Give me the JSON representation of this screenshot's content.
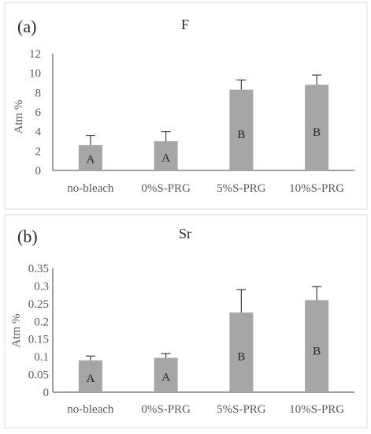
{
  "chart_data": [
    {
      "type": "bar",
      "panel_label": "(a)",
      "title": "F",
      "ylabel": "Atm %",
      "xlabel": "",
      "categories": [
        "no-bleach",
        "0%S-PRG",
        "5%S-PRG",
        "10%S-PRG"
      ],
      "values": [
        2.6,
        3.0,
        8.3,
        8.8
      ],
      "errors": [
        1.0,
        1.0,
        1.0,
        1.0
      ],
      "bar_labels": [
        "A",
        "A",
        "B",
        "B"
      ],
      "ylim": [
        0,
        12
      ],
      "yticks": [
        0,
        2,
        4,
        6,
        8,
        10,
        12
      ],
      "ytick_labels": [
        "0",
        "2",
        "4",
        "6",
        "8",
        "10",
        "12"
      ],
      "grid": false,
      "legend": "none",
      "bar_color": "#a6a6a6"
    },
    {
      "type": "bar",
      "panel_label": "(b)",
      "title": "Sr",
      "ylabel": "Atm %",
      "xlabel": "",
      "categories": [
        "no-bleach",
        "0%S-PRG",
        "5%S-PRG",
        "10%S-PRG"
      ],
      "values": [
        0.09,
        0.097,
        0.225,
        0.26
      ],
      "errors": [
        0.012,
        0.012,
        0.065,
        0.038
      ],
      "bar_labels": [
        "A",
        "A",
        "B",
        "B"
      ],
      "ylim": [
        0,
        0.35
      ],
      "yticks": [
        0,
        0.05,
        0.1,
        0.15,
        0.2,
        0.25,
        0.3,
        0.35
      ],
      "ytick_labels": [
        "0",
        "0.05",
        "0.1",
        "0.15",
        "0.2",
        "0.25",
        "0.3",
        "0.35"
      ],
      "grid": false,
      "legend": "none",
      "bar_color": "#a6a6a6"
    }
  ]
}
